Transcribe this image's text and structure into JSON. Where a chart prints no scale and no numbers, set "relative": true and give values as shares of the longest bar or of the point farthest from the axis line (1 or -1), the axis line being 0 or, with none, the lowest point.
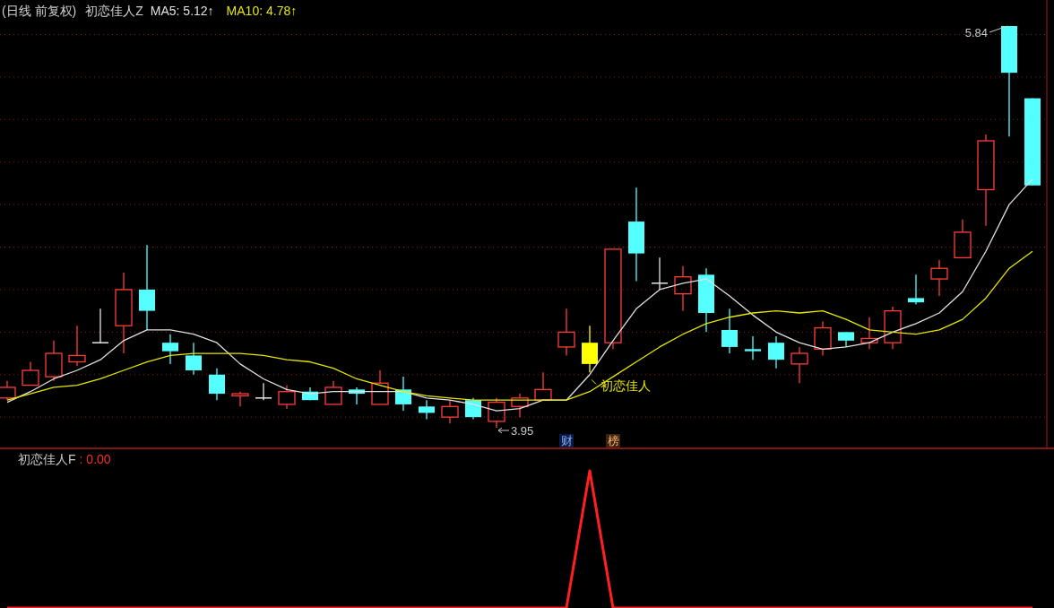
{
  "chart_data": [
    {
      "type": "candlestick",
      "title": "(日线 前复权)",
      "subtitle": "初恋佳人Z",
      "legend": "top left",
      "grid": "y",
      "yticks": [
        {
          "value": 5.8,
          "label": null
        },
        {
          "value": 5.6,
          "label": null
        },
        {
          "value": 5.4,
          "label": null
        },
        {
          "value": 5.2,
          "label": null
        },
        {
          "value": 5.0,
          "label": null
        },
        {
          "value": 4.8,
          "label": null
        },
        {
          "value": 4.6,
          "label": null
        },
        {
          "value": 4.4,
          "label": null
        },
        {
          "value": 4.2,
          "label": null
        },
        {
          "value": 4.0,
          "label": null
        }
      ],
      "categories": [
        null,
        null,
        null,
        null,
        null,
        null,
        null,
        null,
        null,
        null,
        null,
        null,
        null,
        null,
        null,
        null,
        null,
        null,
        null,
        null,
        null,
        null,
        null,
        null,
        null,
        null,
        null,
        null,
        null,
        null,
        null,
        null,
        null,
        null,
        null,
        null,
        null,
        null,
        null,
        null,
        null,
        null,
        null,
        null,
        null
      ],
      "ohlc": [
        [
          4.09,
          4.17,
          4.08,
          4.14
        ],
        [
          4.15,
          4.26,
          4.15,
          4.22
        ],
        [
          4.19,
          4.36,
          4.17,
          4.3
        ],
        [
          4.26,
          4.43,
          4.24,
          4.29
        ],
        [
          4.35,
          4.51,
          4.35,
          4.35
        ],
        [
          4.43,
          4.68,
          4.3,
          4.6
        ],
        [
          4.6,
          4.81,
          4.41,
          4.5
        ],
        [
          4.35,
          4.39,
          4.25,
          4.31
        ],
        [
          4.29,
          4.35,
          4.2,
          4.22
        ],
        [
          4.2,
          4.23,
          4.08,
          4.11
        ],
        [
          4.1,
          4.12,
          4.05,
          4.11
        ],
        [
          4.09,
          4.16,
          4.08,
          4.09
        ],
        [
          4.06,
          4.15,
          4.04,
          4.12
        ],
        [
          4.12,
          4.14,
          4.08,
          4.08
        ],
        [
          4.06,
          4.17,
          4.06,
          4.14
        ],
        [
          4.13,
          4.14,
          4.06,
          4.11
        ],
        [
          4.06,
          4.22,
          4.06,
          4.16
        ],
        [
          4.13,
          4.19,
          4.03,
          4.06
        ],
        [
          4.05,
          4.08,
          3.99,
          4.02
        ],
        [
          4.0,
          4.08,
          3.97,
          4.05
        ],
        [
          4.08,
          4.09,
          3.99,
          4.0
        ],
        [
          3.98,
          4.09,
          3.95,
          4.07
        ],
        [
          4.05,
          4.11,
          4.0,
          4.09
        ],
        [
          4.08,
          4.21,
          4.08,
          4.13
        ],
        [
          4.33,
          4.51,
          4.29,
          4.4
        ],
        [
          4.35,
          4.43,
          4.21,
          4.25
        ],
        [
          4.35,
          4.79,
          4.32,
          4.79
        ],
        [
          4.92,
          5.08,
          4.64,
          4.77
        ],
        [
          4.63,
          4.75,
          4.6,
          4.63
        ],
        [
          4.58,
          4.71,
          4.5,
          4.66
        ],
        [
          4.67,
          4.7,
          4.4,
          4.49
        ],
        [
          4.41,
          4.51,
          4.3,
          4.33
        ],
        [
          4.32,
          4.38,
          4.27,
          4.31
        ],
        [
          4.35,
          4.38,
          4.23,
          4.27
        ],
        [
          4.25,
          4.33,
          4.16,
          4.3
        ],
        [
          4.32,
          4.45,
          4.29,
          4.42
        ],
        [
          4.4,
          4.4,
          4.33,
          4.36
        ],
        [
          4.35,
          4.47,
          4.32,
          4.37
        ],
        [
          4.35,
          4.52,
          4.32,
          4.5
        ],
        [
          4.56,
          4.67,
          4.53,
          4.54
        ],
        [
          4.65,
          4.74,
          4.57,
          4.7
        ],
        [
          4.75,
          4.93,
          4.75,
          4.87
        ],
        [
          5.07,
          5.33,
          4.9,
          5.3
        ],
        [
          5.84,
          5.84,
          5.32,
          5.62
        ],
        [
          5.5,
          5.5,
          5.09,
          5.09
        ]
      ],
      "colors": [
        "#ff3c3c",
        "#ff3c3c",
        "#ff3c3c",
        "#ff3c3c",
        "#e6e6e6",
        "#ff3c3c",
        "#54ffff",
        "#54ffff",
        "#54ffff",
        "#54ffff",
        "#ff3c3c",
        "#e6e6e6",
        "#ff3c3c",
        "#54ffff",
        "#ff3c3c",
        "#54ffff",
        "#ff3c3c",
        "#54ffff",
        "#54ffff",
        "#ff3c3c",
        "#54ffff",
        "#ff3c3c",
        "#ff3c3c",
        "#ff3c3c",
        "#ff3c3c",
        "#ffff00",
        "#ff3c3c",
        "#54ffff",
        "#e6e6e6",
        "#ff3c3c",
        "#54ffff",
        "#54ffff",
        "#54ffff",
        "#54ffff",
        "#ff3c3c",
        "#ff3c3c",
        "#54ffff",
        "#ff3c3c",
        "#ff3c3c",
        "#54ffff",
        "#ff3c3c",
        "#ff3c3c",
        "#ff3c3c",
        "#54ffff",
        "#54ffff"
      ],
      "series": [
        {
          "name": "MA5: 5.12↑",
          "type": "line",
          "color": "#e0e0e0",
          "values": [
            4.07,
            4.12,
            4.18,
            4.22,
            4.27,
            4.36,
            4.41,
            4.41,
            4.39,
            4.35,
            4.25,
            4.18,
            4.13,
            4.11,
            4.12,
            4.12,
            4.12,
            4.12,
            4.09,
            4.08,
            4.06,
            4.03,
            4.04,
            4.08,
            4.08,
            4.2,
            4.36,
            4.51,
            4.6,
            4.63,
            4.65,
            4.57,
            4.48,
            4.4,
            4.35,
            4.32,
            4.33,
            4.35,
            4.4,
            4.44,
            4.49,
            4.59,
            4.78,
            5.0,
            5.12
          ]
        },
        {
          "name": "MA10: 4.78↑",
          "type": "line",
          "color": "#e6e600",
          "values": [
            4.08,
            4.11,
            4.14,
            4.15,
            4.18,
            4.22,
            4.26,
            4.29,
            4.3,
            4.3,
            4.3,
            4.29,
            4.27,
            4.26,
            4.23,
            4.18,
            4.15,
            4.12,
            4.1,
            4.09,
            4.08,
            4.08,
            4.08,
            4.08,
            4.08,
            4.12,
            4.19,
            4.26,
            4.33,
            4.39,
            4.44,
            4.47,
            4.49,
            4.5,
            4.49,
            4.5,
            4.46,
            4.41,
            4.4,
            4.39,
            4.41,
            4.46,
            4.56,
            4.7,
            4.78
          ]
        }
      ],
      "annotations": [
        "5.84",
        "3.95",
        "初恋佳人",
        "财",
        "榜"
      ]
    },
    {
      "type": "line",
      "title": "初恋佳人F",
      "subtitle": ": 0.00",
      "relative": true,
      "categories": [
        null,
        null,
        null,
        null,
        null,
        null,
        null,
        null,
        null,
        null,
        null,
        null,
        null,
        null,
        null,
        null,
        null,
        null,
        null,
        null,
        null,
        null,
        null,
        null,
        null,
        null,
        null,
        null,
        null,
        null,
        null,
        null,
        null,
        null,
        null,
        null,
        null,
        null,
        null,
        null,
        null,
        null,
        null,
        null,
        null
      ],
      "series": [
        {
          "color": "#ff2020",
          "values": [
            0,
            0,
            0,
            0,
            0,
            0,
            0,
            0,
            0,
            0,
            0,
            0,
            0,
            0,
            0,
            0,
            0,
            0,
            0,
            0,
            0,
            0,
            0,
            0,
            0,
            1,
            0,
            0,
            0,
            0,
            0,
            0,
            0,
            0,
            0,
            0,
            0,
            0,
            0,
            0,
            0,
            0,
            0,
            0,
            0
          ]
        }
      ]
    }
  ]
}
